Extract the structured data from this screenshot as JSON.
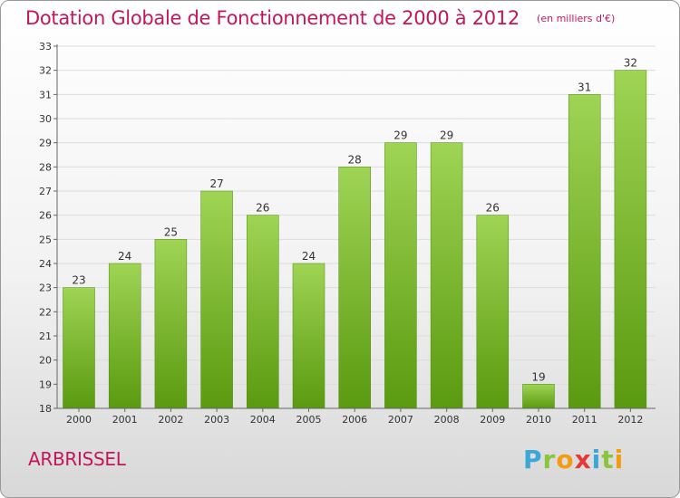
{
  "header": {
    "title": "Dotation Globale de Fonctionnement de 2000 à 2012",
    "subtitle": "(en milliers d'€)"
  },
  "footer": {
    "city": "ARBRISSEL",
    "logo_letters": [
      {
        "char": "P",
        "color": "#3aa7d6"
      },
      {
        "char": "r",
        "color": "#8bc43f"
      },
      {
        "char": "o",
        "color": "#f39c12"
      },
      {
        "char": "x",
        "color": "#e53935"
      },
      {
        "char": "i",
        "color": "#3aa7d6"
      },
      {
        "char": "t",
        "color": "#8bc43f"
      },
      {
        "char": "i",
        "color": "#f39c12"
      }
    ]
  },
  "colors": {
    "bar_light": "#9fd454",
    "bar_dark": "#5a9a10",
    "title": "#c2185b"
  },
  "chart_data": {
    "type": "bar",
    "categories": [
      "2000",
      "2001",
      "2002",
      "2003",
      "2004",
      "2005",
      "2006",
      "2007",
      "2008",
      "2009",
      "2010",
      "2011",
      "2012"
    ],
    "values": [
      23,
      24,
      25,
      27,
      26,
      24,
      28,
      29,
      29,
      26,
      19,
      31,
      32
    ],
    "ylim": [
      18,
      33
    ],
    "yticks": [
      18,
      19,
      20,
      21,
      22,
      23,
      24,
      25,
      26,
      27,
      28,
      29,
      30,
      31,
      32,
      33
    ],
    "grid": true
  }
}
